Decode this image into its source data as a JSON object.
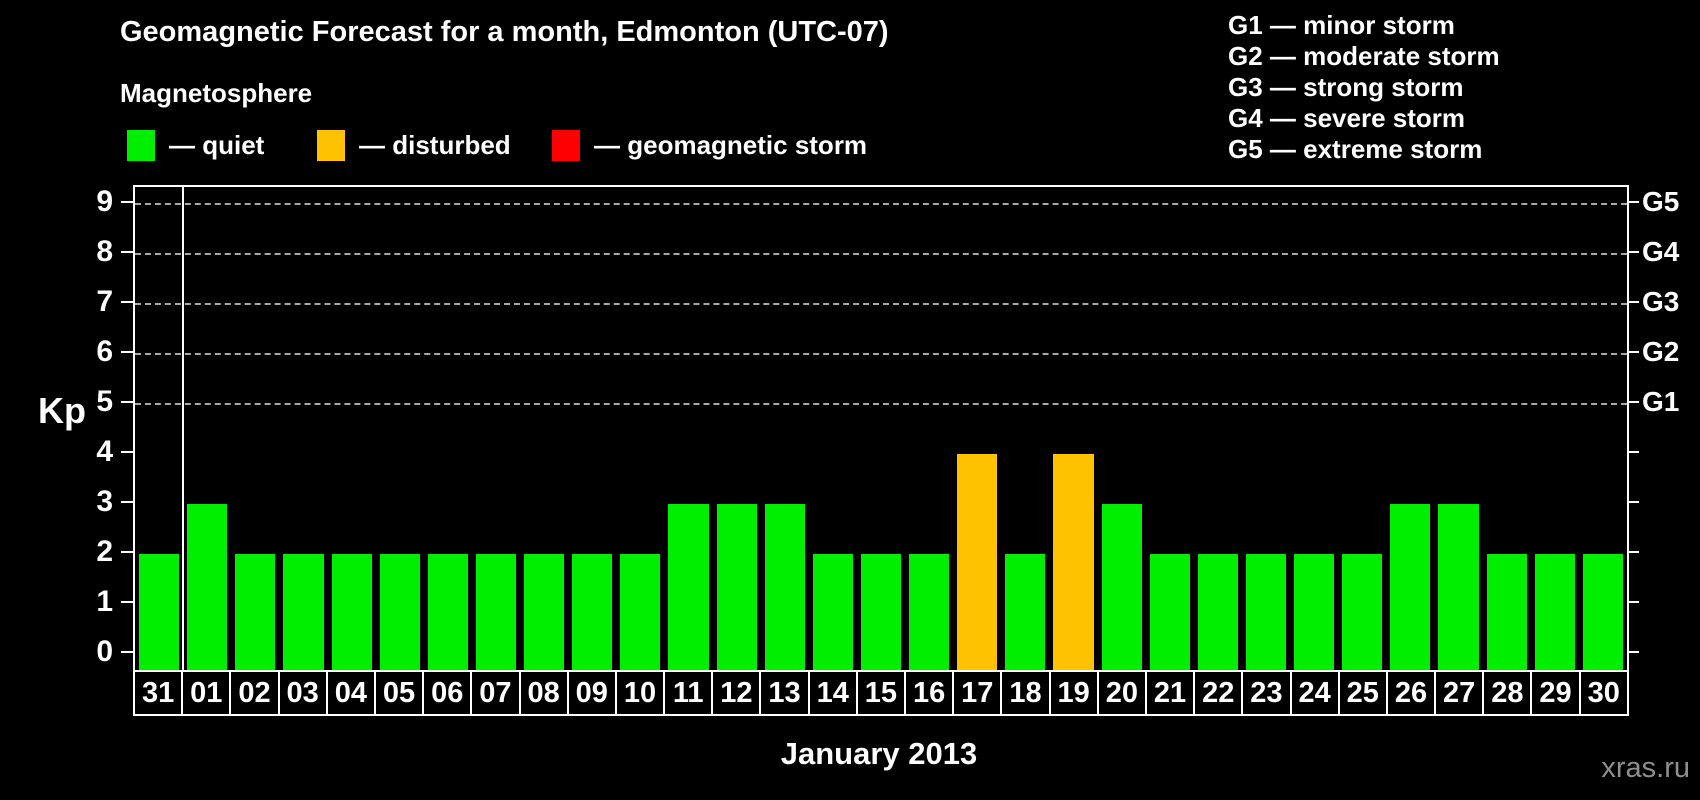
{
  "header": {
    "title": "Geomagnetic Forecast for a month, Edmonton (UTC-07)",
    "subtitle": "Magnetosphere"
  },
  "legend": {
    "items": [
      {
        "name": "quiet",
        "label": "— quiet",
        "color": "#00ee00"
      },
      {
        "name": "disturbed",
        "label": "— disturbed",
        "color": "#ffc200"
      },
      {
        "name": "storm",
        "label": "— geomagnetic storm",
        "color": "#ff0000"
      }
    ]
  },
  "g_scale_legend": {
    "items": [
      "G1 — minor storm",
      "G2 — moderate storm",
      "G3 — strong storm",
      "G4 — severe storm",
      "G5 — extreme storm"
    ]
  },
  "watermark": "xras.ru",
  "chart_data": {
    "type": "bar",
    "title": "Geomagnetic Forecast for a month, Edmonton (UTC-07)",
    "xlabel": "January 2013",
    "ylabel": "Kp",
    "ylim": [
      0,
      9
    ],
    "yticks": [
      0,
      1,
      2,
      3,
      4,
      5,
      6,
      7,
      8,
      9
    ],
    "gridlines_at_kp": [
      5,
      6,
      7,
      8,
      9
    ],
    "grid": "dashed horizontal lines at G-storm levels only",
    "legend_position": "top",
    "right_axis": [
      {
        "label": "G1",
        "kp": 5
      },
      {
        "label": "G2",
        "kp": 6
      },
      {
        "label": "G3",
        "kp": 7
      },
      {
        "label": "G4",
        "kp": 8
      },
      {
        "label": "G5",
        "kp": 9
      }
    ],
    "categories": [
      "31",
      "01",
      "02",
      "03",
      "04",
      "05",
      "06",
      "07",
      "08",
      "09",
      "10",
      "11",
      "12",
      "13",
      "14",
      "15",
      "16",
      "17",
      "18",
      "19",
      "20",
      "21",
      "22",
      "23",
      "24",
      "25",
      "26",
      "27",
      "28",
      "29",
      "30"
    ],
    "series": [
      {
        "name": "Kp forecast",
        "values": [
          2,
          3,
          2,
          2,
          2,
          2,
          2,
          2,
          2,
          2,
          2,
          3,
          3,
          3,
          2,
          2,
          2,
          4,
          2,
          4,
          3,
          2,
          2,
          2,
          2,
          2,
          3,
          3,
          2,
          2,
          2
        ]
      }
    ],
    "statuses": [
      "quiet",
      "quiet",
      "quiet",
      "quiet",
      "quiet",
      "quiet",
      "quiet",
      "quiet",
      "quiet",
      "quiet",
      "quiet",
      "quiet",
      "quiet",
      "quiet",
      "quiet",
      "quiet",
      "quiet",
      "disturbed",
      "quiet",
      "disturbed",
      "quiet",
      "quiet",
      "quiet",
      "quiet",
      "quiet",
      "quiet",
      "quiet",
      "quiet",
      "quiet",
      "quiet",
      "quiet"
    ],
    "status_colors": {
      "quiet": "#00ee00",
      "disturbed": "#ffc200",
      "storm": "#ff0000"
    },
    "month_separator_after_category": "31"
  }
}
